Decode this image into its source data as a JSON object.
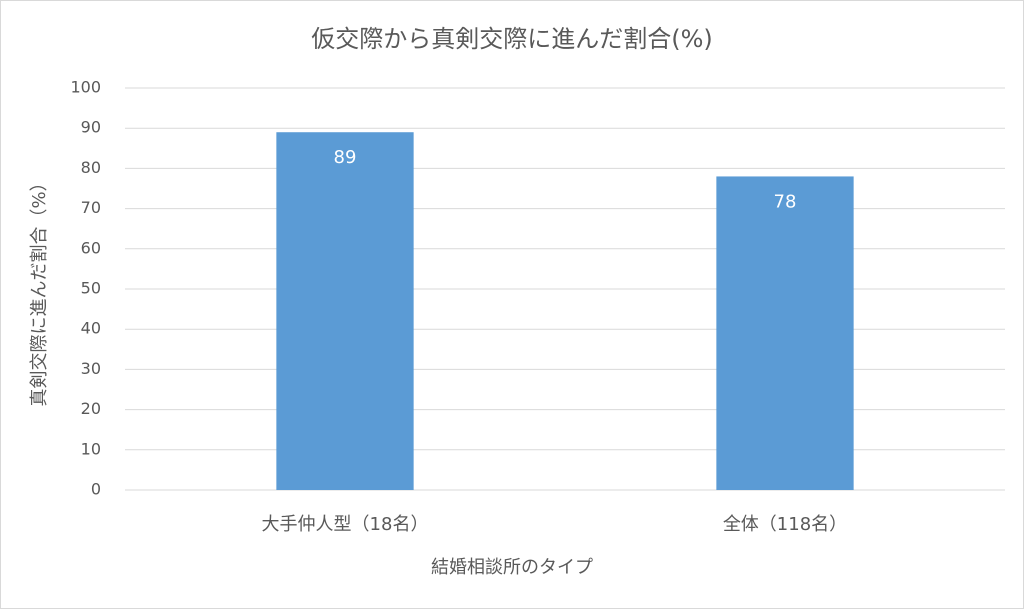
{
  "chart_data": {
    "type": "bar",
    "title": "仮交際から真剣交際に進んだ割合(%)",
    "x_label": "結婚相談所のタイプ",
    "y_label": "真剣交際に進んだ割合（%）",
    "categories": [
      "大手仲人型（18名）",
      "全体（118名）"
    ],
    "values": [
      89,
      78
    ],
    "color": "#5b9bd5",
    "ylim": [
      0,
      100
    ],
    "yticks": [
      0,
      10,
      20,
      30,
      40,
      50,
      60,
      70,
      80,
      90,
      100
    ],
    "grid": true,
    "data_labels": true
  }
}
